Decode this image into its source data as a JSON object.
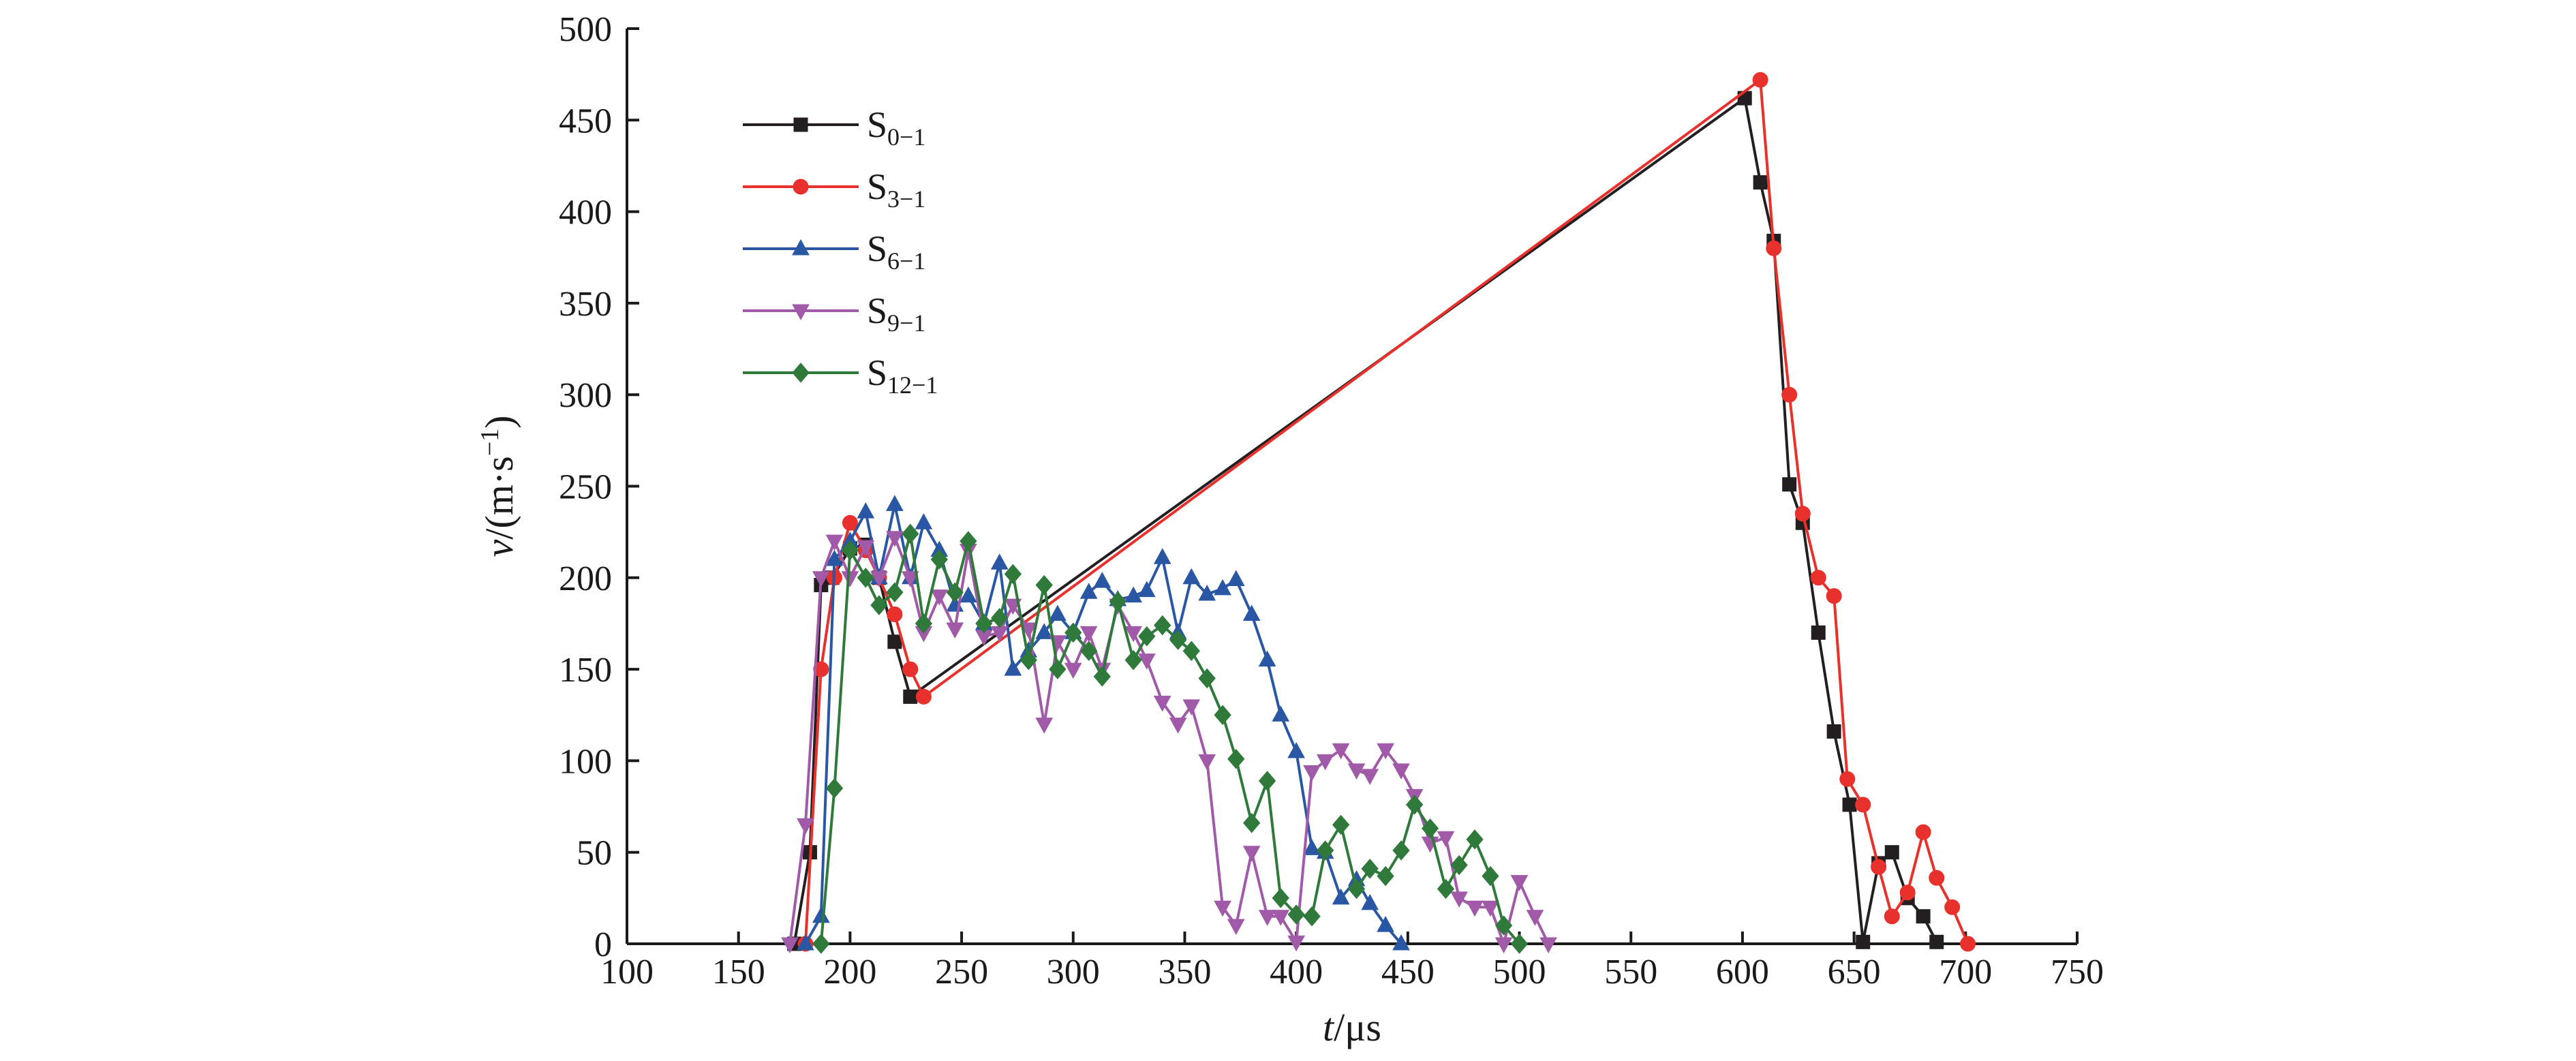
{
  "chart_data": {
    "type": "line",
    "title": "",
    "xlabel": {
      "var": "t",
      "unit": "/μs"
    },
    "ylabel": {
      "var": "v",
      "unit_open": "/(m·s",
      "unit_sup": "−1",
      "unit_close": ")"
    },
    "xlim": [
      100,
      750
    ],
    "ylim": [
      0,
      500
    ],
    "xticks": [
      100,
      150,
      200,
      250,
      300,
      350,
      400,
      450,
      500,
      550,
      600,
      650,
      700,
      750
    ],
    "yticks": [
      0,
      50,
      100,
      150,
      200,
      250,
      300,
      350,
      400,
      450,
      500
    ],
    "grid": false,
    "legend_position": "top-left",
    "series": [
      {
        "name_main": "S",
        "name_sub": "0−1",
        "color": "#231f20",
        "marker": "square",
        "points": [
          [
            175,
            0
          ],
          [
            182,
            50
          ],
          [
            187,
            196
          ],
          [
            192,
            200
          ],
          [
            200,
            216
          ],
          [
            207,
            218
          ],
          [
            213,
            200
          ],
          [
            220,
            165
          ],
          [
            227,
            135
          ],
          [
            601,
            462
          ],
          [
            608,
            416
          ],
          [
            614,
            384
          ],
          [
            621,
            251
          ],
          [
            627,
            230
          ],
          [
            634,
            170
          ],
          [
            641,
            116
          ],
          [
            648,
            76
          ],
          [
            654,
            1
          ],
          [
            661,
            44
          ],
          [
            667,
            50
          ],
          [
            674,
            25
          ],
          [
            681,
            15
          ],
          [
            687,
            1
          ]
        ]
      },
      {
        "name_main": "S",
        "name_sub": "3−1",
        "color": "#e8302c",
        "marker": "circle",
        "points": [
          [
            180,
            0
          ],
          [
            187,
            150
          ],
          [
            193,
            200
          ],
          [
            200,
            230
          ],
          [
            207,
            215
          ],
          [
            213,
            200
          ],
          [
            220,
            180
          ],
          [
            227,
            150
          ],
          [
            233,
            135
          ],
          [
            608,
            472
          ],
          [
            614,
            380
          ],
          [
            621,
            300
          ],
          [
            627,
            235
          ],
          [
            634,
            200
          ],
          [
            641,
            190
          ],
          [
            647,
            90
          ],
          [
            654,
            76
          ],
          [
            661,
            42
          ],
          [
            667,
            15
          ],
          [
            674,
            28
          ],
          [
            681,
            61
          ],
          [
            687,
            36
          ],
          [
            694,
            20
          ],
          [
            701,
            0
          ]
        ]
      },
      {
        "name_main": "S",
        "name_sub": "6−1",
        "color": "#2957a4",
        "marker": "triangle-up",
        "points": [
          [
            180,
            0
          ],
          [
            187,
            15
          ],
          [
            193,
            210
          ],
          [
            200,
            220
          ],
          [
            207,
            236
          ],
          [
            213,
            200
          ],
          [
            220,
            240
          ],
          [
            227,
            200
          ],
          [
            233,
            230
          ],
          [
            240,
            215
          ],
          [
            247,
            185
          ],
          [
            253,
            190
          ],
          [
            260,
            175
          ],
          [
            267,
            208
          ],
          [
            273,
            150
          ],
          [
            280,
            160
          ],
          [
            287,
            170
          ],
          [
            293,
            180
          ],
          [
            300,
            170
          ],
          [
            307,
            192
          ],
          [
            313,
            198
          ],
          [
            320,
            188
          ],
          [
            327,
            190
          ],
          [
            333,
            193
          ],
          [
            340,
            211
          ],
          [
            347,
            170
          ],
          [
            353,
            200
          ],
          [
            360,
            191
          ],
          [
            367,
            194
          ],
          [
            373,
            199
          ],
          [
            380,
            180
          ],
          [
            387,
            155
          ],
          [
            393,
            125
          ],
          [
            400,
            105
          ],
          [
            407,
            52
          ],
          [
            413,
            50
          ],
          [
            420,
            25
          ],
          [
            427,
            35
          ],
          [
            433,
            22
          ],
          [
            440,
            10
          ],
          [
            447,
            0
          ]
        ]
      },
      {
        "name_main": "S",
        "name_sub": "9−1",
        "color": "#a05aa8",
        "marker": "triangle-down",
        "points": [
          [
            173,
            0
          ],
          [
            180,
            65
          ],
          [
            187,
            200
          ],
          [
            193,
            220
          ],
          [
            200,
            200
          ],
          [
            207,
            217
          ],
          [
            213,
            200
          ],
          [
            220,
            222
          ],
          [
            227,
            200
          ],
          [
            233,
            170
          ],
          [
            240,
            190
          ],
          [
            247,
            172
          ],
          [
            253,
            215
          ],
          [
            260,
            168
          ],
          [
            267,
            170
          ],
          [
            273,
            185
          ],
          [
            280,
            172
          ],
          [
            287,
            120
          ],
          [
            293,
            165
          ],
          [
            300,
            150
          ],
          [
            307,
            170
          ],
          [
            313,
            150
          ],
          [
            320,
            185
          ],
          [
            327,
            170
          ],
          [
            333,
            155
          ],
          [
            340,
            132
          ],
          [
            347,
            120
          ],
          [
            353,
            130
          ],
          [
            360,
            100
          ],
          [
            367,
            20
          ],
          [
            373,
            10
          ],
          [
            380,
            50
          ],
          [
            387,
            15
          ],
          [
            393,
            15
          ],
          [
            400,
            1
          ],
          [
            407,
            94
          ],
          [
            413,
            100
          ],
          [
            420,
            106
          ],
          [
            427,
            95
          ],
          [
            433,
            92
          ],
          [
            440,
            106
          ],
          [
            447,
            95
          ],
          [
            453,
            81
          ],
          [
            460,
            55
          ],
          [
            467,
            58
          ],
          [
            473,
            25
          ],
          [
            480,
            20
          ],
          [
            487,
            20
          ],
          [
            493,
            0
          ],
          [
            500,
            34
          ],
          [
            507,
            15
          ],
          [
            513,
            0
          ]
        ]
      },
      {
        "name_main": "S",
        "name_sub": "12−1",
        "color": "#2f7a3b",
        "marker": "diamond",
        "points": [
          [
            187,
            0
          ],
          [
            193,
            85
          ],
          [
            200,
            215
          ],
          [
            207,
            200
          ],
          [
            213,
            185
          ],
          [
            220,
            192
          ],
          [
            227,
            224
          ],
          [
            233,
            175
          ],
          [
            240,
            210
          ],
          [
            247,
            192
          ],
          [
            253,
            220
          ],
          [
            260,
            175
          ],
          [
            267,
            178
          ],
          [
            273,
            202
          ],
          [
            280,
            155
          ],
          [
            287,
            196
          ],
          [
            293,
            150
          ],
          [
            300,
            170
          ],
          [
            307,
            160
          ],
          [
            313,
            146
          ],
          [
            320,
            187
          ],
          [
            327,
            155
          ],
          [
            333,
            168
          ],
          [
            340,
            174
          ],
          [
            347,
            166
          ],
          [
            353,
            160
          ],
          [
            360,
            145
          ],
          [
            367,
            125
          ],
          [
            373,
            101
          ],
          [
            380,
            66
          ],
          [
            387,
            89
          ],
          [
            393,
            25
          ],
          [
            400,
            16
          ],
          [
            407,
            15
          ],
          [
            413,
            51
          ],
          [
            420,
            65
          ],
          [
            427,
            30
          ],
          [
            433,
            41
          ],
          [
            440,
            37
          ],
          [
            447,
            51
          ],
          [
            453,
            76
          ],
          [
            460,
            63
          ],
          [
            467,
            30
          ],
          [
            473,
            43
          ],
          [
            480,
            57
          ],
          [
            487,
            37
          ],
          [
            493,
            10
          ],
          [
            500,
            0
          ]
        ]
      }
    ]
  }
}
